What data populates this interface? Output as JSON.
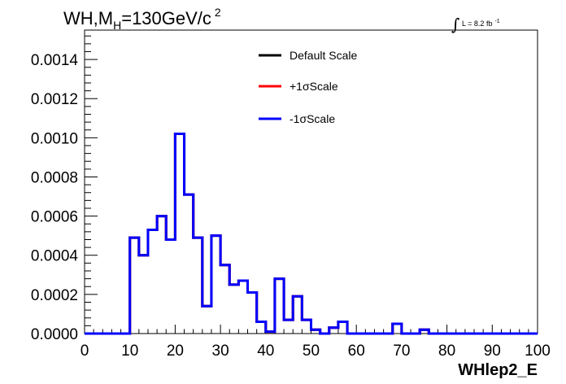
{
  "chart_data": {
    "type": "line",
    "title": {
      "prefix": "WH,M",
      "sub": "H",
      "mid": "=130GeV/c",
      "sup": "2"
    },
    "lumi": {
      "symbol": "∫",
      "text": "L = 8.2 fb",
      "sup": "-1"
    },
    "xlabel": "WHlep2_E",
    "ylabel": "",
    "xlim": [
      0,
      100
    ],
    "ylim": [
      0,
      0.00155
    ],
    "grid": false,
    "legend_position": "top-center",
    "x_ticks": [
      0,
      10,
      20,
      30,
      40,
      50,
      60,
      70,
      80,
      90,
      100
    ],
    "x_tick_labels": [
      "0",
      "10",
      "20",
      "30",
      "40",
      "50",
      "60",
      "70",
      "80",
      "90",
      "100"
    ],
    "y_ticks": [
      0,
      0.0002,
      0.0004,
      0.0006,
      0.0008,
      0.001,
      0.0012,
      0.0014
    ],
    "y_tick_labels": [
      "0.0000",
      "0.0002",
      "0.0004",
      "0.0006",
      "0.0008",
      "0.0010",
      "0.0012",
      "0.0014"
    ],
    "bin_edges": [
      0,
      2,
      4,
      6,
      8,
      10,
      12,
      14,
      16,
      18,
      20,
      22,
      24,
      26,
      28,
      30,
      32,
      34,
      36,
      38,
      40,
      42,
      44,
      46,
      48,
      50,
      52,
      54,
      56,
      58,
      60,
      62,
      64,
      66,
      68,
      70,
      72,
      74,
      76,
      78,
      80,
      82,
      84,
      86,
      88,
      90,
      92,
      94,
      96,
      98,
      100
    ],
    "series": [
      {
        "name": "Default Scale",
        "color": "#000000",
        "values": [
          0,
          0,
          0,
          0,
          0,
          0.00049,
          0.0004,
          0.00053,
          0.0006,
          0.00048,
          0.00102,
          0.00071,
          0.00049,
          0.00014,
          0.0005,
          0.00035,
          0.00025,
          0.00027,
          0.00021,
          6e-05,
          1e-05,
          0.00028,
          7e-05,
          0.00019,
          7e-05,
          2e-05,
          0,
          3e-05,
          6e-05,
          0,
          0,
          0,
          0,
          0,
          5e-05,
          0,
          0,
          2e-05,
          0,
          0,
          0,
          0,
          0,
          0,
          0,
          0,
          0,
          0,
          0,
          0
        ]
      },
      {
        "name": "+1σScale",
        "color": "#ff0000",
        "values": [
          0,
          0,
          0,
          0,
          0,
          0.00049,
          0.0004,
          0.00053,
          0.0006,
          0.00048,
          0.00102,
          0.00071,
          0.00049,
          0.00014,
          0.0005,
          0.00035,
          0.00025,
          0.00027,
          0.00021,
          6e-05,
          1e-05,
          0.00028,
          7e-05,
          0.00019,
          7e-05,
          2e-05,
          0,
          3e-05,
          6e-05,
          0,
          0,
          0,
          0,
          0,
          5e-05,
          0,
          0,
          2e-05,
          0,
          0,
          0,
          0,
          0,
          0,
          0,
          0,
          0,
          0,
          0,
          0
        ]
      },
      {
        "name": "-1σScale",
        "color": "#0000ff",
        "values": [
          0,
          0,
          0,
          0,
          0,
          0.00049,
          0.0004,
          0.00053,
          0.0006,
          0.00048,
          0.00102,
          0.00071,
          0.00049,
          0.00014,
          0.0005,
          0.00035,
          0.00025,
          0.00027,
          0.00021,
          6e-05,
          1e-05,
          0.00028,
          7e-05,
          0.00019,
          7e-05,
          2e-05,
          0,
          3e-05,
          6e-05,
          0,
          0,
          0,
          0,
          0,
          5e-05,
          0,
          0,
          2e-05,
          0,
          0,
          0,
          0,
          0,
          0,
          0,
          0,
          0,
          0,
          0,
          0
        ]
      }
    ]
  }
}
